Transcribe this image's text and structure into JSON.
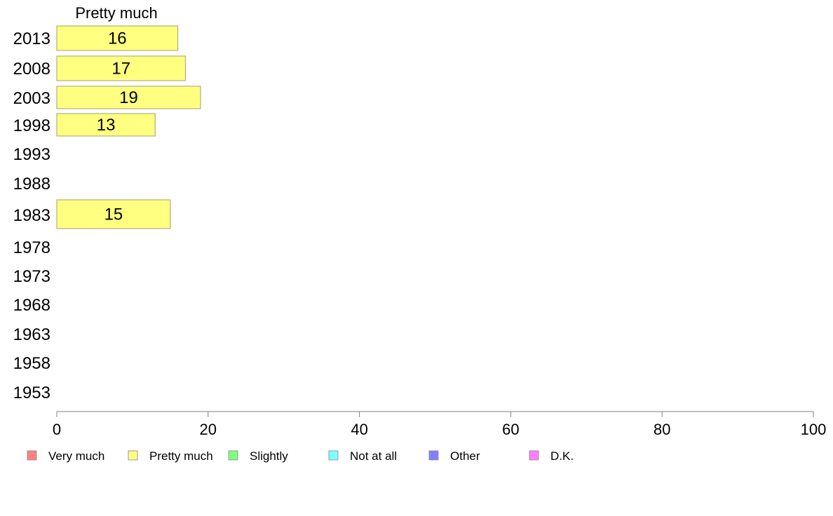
{
  "chart_data": {
    "type": "bar",
    "orientation": "horizontal",
    "title": "",
    "series_header": "Pretty much",
    "categories": [
      "2013",
      "2008",
      "2003",
      "1998",
      "1993",
      "1988",
      "1983",
      "1978",
      "1973",
      "1968",
      "1963",
      "1958",
      "1953"
    ],
    "series": [
      {
        "name": "Pretty much",
        "color": "#ffff80",
        "values": [
          16,
          17,
          19,
          13,
          null,
          null,
          15,
          null,
          null,
          null,
          null,
          null,
          null
        ]
      }
    ],
    "xlim": [
      0,
      100
    ],
    "xticks": [
      0,
      20,
      40,
      60,
      80,
      100
    ],
    "grid": false,
    "legend_position": "bottom-left",
    "legend": [
      {
        "label": "Very much",
        "color": "#ff8080"
      },
      {
        "label": "Pretty much",
        "color": "#ffff80"
      },
      {
        "label": "Slightly",
        "color": "#80ff80"
      },
      {
        "label": "Not at all",
        "color": "#80ffff"
      },
      {
        "label": "Other",
        "color": "#8080ff"
      },
      {
        "label": "D.K.",
        "color": "#ff80ff"
      }
    ]
  }
}
